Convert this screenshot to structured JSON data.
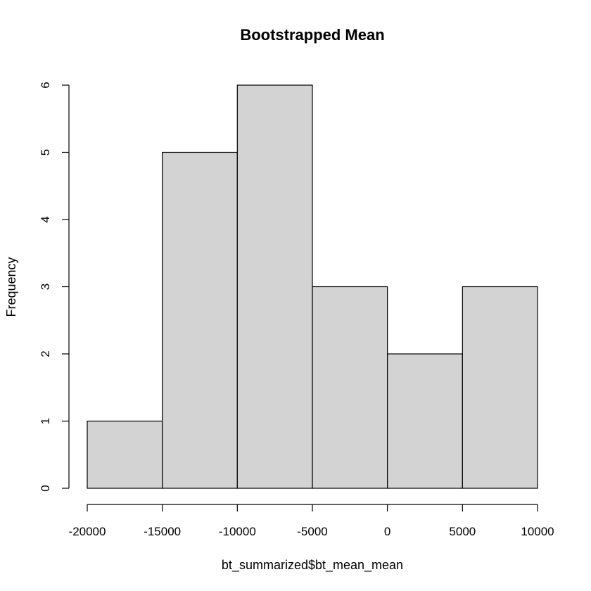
{
  "chart_data": {
    "type": "bar",
    "title": "Bootstrapped Mean",
    "xlabel": "bt_summarized$bt_mean_mean",
    "ylabel": "Frequency",
    "bins": [
      {
        "from": -20000,
        "to": -15000,
        "count": 1
      },
      {
        "from": -15000,
        "to": -10000,
        "count": 5
      },
      {
        "from": -10000,
        "to": -5000,
        "count": 6
      },
      {
        "from": -5000,
        "to": 0,
        "count": 3
      },
      {
        "from": 0,
        "to": 5000,
        "count": 2
      },
      {
        "from": 5000,
        "to": 10000,
        "count": 3
      }
    ],
    "xlim": [
      -20000,
      10000
    ],
    "ylim": [
      0,
      6
    ],
    "x_ticks": [
      -20000,
      -15000,
      -10000,
      -5000,
      0,
      5000,
      10000
    ],
    "y_ticks": [
      0,
      1,
      2,
      3,
      4,
      5,
      6
    ],
    "x_tick_labels": [
      "-20000",
      "-15000",
      "-10000",
      "-5000",
      "0",
      "5000",
      "10000"
    ],
    "y_tick_labels": [
      "0",
      "1",
      "2",
      "3",
      "4",
      "5",
      "6"
    ],
    "grid": false,
    "colors": {
      "bar_fill": "#d3d3d3",
      "bar_stroke": "#000000"
    }
  }
}
